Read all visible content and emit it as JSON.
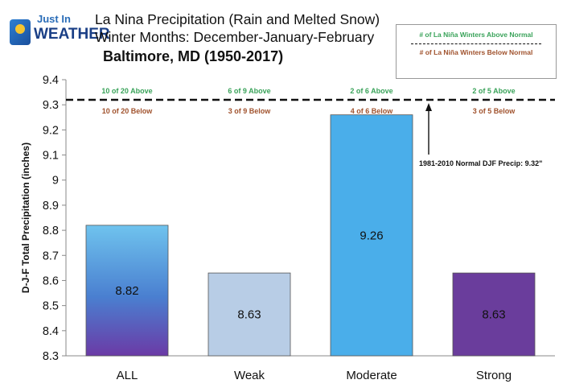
{
  "header": {
    "logo_top": "Just In",
    "logo_bottom": "WEATHER",
    "title": "La Nina Precipitation (Rain and Melted Snow)",
    "subtitle": "Winter Months: December-January-February",
    "location": "Baltimore, MD (1950-2017)"
  },
  "legend": {
    "above": "# of La Niña Winters Above Normal",
    "below": "# of La Niña Winters Below Normal"
  },
  "colors": {
    "above_text": "#3aa35a",
    "below_text": "#a0522d"
  },
  "chart_data": {
    "type": "bar",
    "ylabel": "D-J-F Total Precipitation (inches)",
    "ylim": [
      8.3,
      9.4
    ],
    "yticks": [
      "8.3",
      "8.4",
      "8.5",
      "8.6",
      "8.7",
      "8.8",
      "8.9",
      "9",
      "9.1",
      "9.2",
      "9.3",
      "9.4"
    ],
    "categories": [
      "ALL",
      "Weak",
      "Moderate",
      "Strong"
    ],
    "values": [
      8.82,
      8.63,
      9.26,
      8.63
    ],
    "value_labels": [
      "8.82",
      "8.63",
      "9.26",
      "8.63"
    ],
    "above_counts": [
      "10 of 20 Above",
      "6 of 9 Above",
      "2 of 6 Above",
      "2 of 5 Above"
    ],
    "below_counts": [
      "10 of 20 Below",
      "3 of 9 Below",
      "4 of 6 Below",
      "3 of 5 Below"
    ],
    "bar_colors": [
      "#4a7fd0",
      "#b8cde6",
      "#4aaeea",
      "#6a3d9c"
    ],
    "normal_line": 9.32,
    "normal_annotation": "1981-2010  Normal DJF Precip: 9.32\"",
    "grid": false,
    "legend_position": "top-right"
  }
}
